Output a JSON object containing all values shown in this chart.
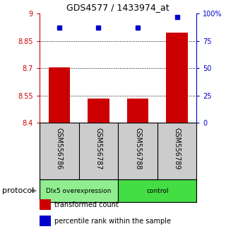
{
  "title": "GDS4577 / 1433974_at",
  "samples": [
    "GSM556786",
    "GSM556787",
    "GSM556788",
    "GSM556789"
  ],
  "bar_values": [
    8.706,
    8.535,
    8.535,
    8.897
  ],
  "percentile_values": [
    87,
    87,
    87,
    97
  ],
  "bar_color": "#cc0000",
  "dot_color": "#0000cc",
  "ylim_left": [
    8.4,
    9.0
  ],
  "ylim_right": [
    0,
    100
  ],
  "yticks_left": [
    8.4,
    8.55,
    8.7,
    8.85,
    9.0
  ],
  "ytick_labels_left": [
    "8.4",
    "8.55",
    "8.7",
    "8.85",
    "9"
  ],
  "yticks_right": [
    0,
    25,
    50,
    75,
    100
  ],
  "ytick_labels_right": [
    "0",
    "25",
    "50",
    "75",
    "100%"
  ],
  "hlines": [
    8.55,
    8.7,
    8.85
  ],
  "groups": [
    {
      "label": "Dlx5 overexpression",
      "color": "#90ee90",
      "indices": [
        0,
        1
      ]
    },
    {
      "label": "control",
      "color": "#44dd44",
      "indices": [
        2,
        3
      ]
    }
  ],
  "protocol_label": "protocol",
  "bar_width": 0.55,
  "background_plot": "#ffffff",
  "background_sample": "#cccccc",
  "tick_color_left": "#cc0000",
  "tick_color_right": "#0000cc",
  "legend_items": [
    {
      "color": "#cc0000",
      "label": "transformed count"
    },
    {
      "color": "#0000cc",
      "label": "percentile rank within the sample"
    }
  ]
}
